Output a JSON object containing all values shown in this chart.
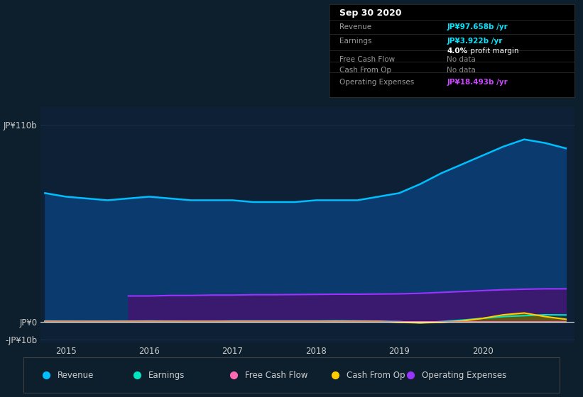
{
  "bg_color": "#0d1f2d",
  "chart_bg": "#0d2035",
  "grid_color": "#1e3a50",
  "title_date": "Sep 30 2020",
  "yticks": [
    "JP¥110b",
    "JP¥0",
    "-JP¥10b"
  ],
  "ytick_vals": [
    110,
    0,
    -10
  ],
  "xticks": [
    "2015",
    "2016",
    "2017",
    "2018",
    "2019",
    "2020"
  ],
  "xlim": [
    2014.7,
    2021.1
  ],
  "ylim": [
    -12,
    120
  ],
  "legend_items": [
    {
      "label": "Revenue",
      "color": "#00bfff"
    },
    {
      "label": "Earnings",
      "color": "#00e5c0"
    },
    {
      "label": "Free Cash Flow",
      "color": "#ff69b4"
    },
    {
      "label": "Cash From Op",
      "color": "#ffcc00"
    },
    {
      "label": "Operating Expenses",
      "color": "#9933ff"
    }
  ],
  "revenue": {
    "x": [
      2014.75,
      2015.0,
      2015.25,
      2015.5,
      2015.75,
      2016.0,
      2016.25,
      2016.5,
      2016.75,
      2017.0,
      2017.25,
      2017.5,
      2017.75,
      2018.0,
      2018.25,
      2018.5,
      2018.75,
      2019.0,
      2019.25,
      2019.5,
      2019.75,
      2020.0,
      2020.25,
      2020.5,
      2020.75,
      2021.0
    ],
    "y": [
      72,
      70,
      69,
      68,
      69,
      70,
      69,
      68,
      68,
      68,
      67,
      67,
      67,
      68,
      68,
      68,
      70,
      72,
      77,
      83,
      88,
      93,
      98,
      102,
      100,
      97
    ],
    "color": "#00bfff",
    "fill_color": "#0a3a6e"
  },
  "op_expenses": {
    "x": [
      2015.75,
      2016.0,
      2016.25,
      2016.5,
      2016.75,
      2017.0,
      2017.25,
      2017.5,
      2017.75,
      2018.0,
      2018.25,
      2018.5,
      2018.75,
      2019.0,
      2019.25,
      2019.5,
      2019.75,
      2020.0,
      2020.25,
      2020.5,
      2020.75,
      2021.0
    ],
    "y": [
      14.5,
      14.5,
      14.8,
      14.8,
      15.0,
      15.0,
      15.2,
      15.2,
      15.3,
      15.4,
      15.5,
      15.5,
      15.6,
      15.7,
      16.0,
      16.5,
      17.0,
      17.5,
      18.0,
      18.3,
      18.5,
      18.5
    ],
    "color": "#9933ff",
    "fill_color": "#3a1a6e"
  },
  "earnings": {
    "x": [
      2014.75,
      2015.0,
      2015.25,
      2015.5,
      2015.75,
      2016.0,
      2016.25,
      2016.5,
      2016.75,
      2017.0,
      2017.25,
      2017.5,
      2017.75,
      2018.0,
      2018.25,
      2018.5,
      2018.75,
      2019.0,
      2019.25,
      2019.5,
      2019.75,
      2020.0,
      2020.25,
      2020.5,
      2020.75,
      2021.0
    ],
    "y": [
      0.5,
      0.4,
      0.3,
      0.3,
      0.4,
      0.5,
      0.4,
      0.3,
      0.3,
      0.5,
      0.5,
      0.5,
      0.5,
      0.5,
      0.6,
      0.5,
      0.4,
      0.2,
      -0.5,
      0.2,
      1.0,
      2.0,
      3.0,
      3.5,
      4.0,
      3.9
    ],
    "color": "#00e5c0",
    "fill_color": "#004040"
  },
  "free_cash_flow": {
    "x": [
      2014.75,
      2015.0,
      2015.25,
      2015.5,
      2015.75,
      2016.0,
      2016.25,
      2016.5,
      2016.75,
      2017.0,
      2017.25,
      2017.5,
      2017.75,
      2018.0,
      2018.25,
      2018.5,
      2018.75,
      2019.0,
      2019.25,
      2019.5,
      2019.75,
      2020.0,
      2020.25,
      2020.5,
      2020.75,
      2021.0
    ],
    "y": [
      0.2,
      0.1,
      0.1,
      0.1,
      0.1,
      0.1,
      0.1,
      0.1,
      0.1,
      0.1,
      0.1,
      0.1,
      0.1,
      0.1,
      0.1,
      0.1,
      0.1,
      0.1,
      0.1,
      0.1,
      0.1,
      0.1,
      0.1,
      0.1,
      0.1,
      0.1
    ],
    "color": "#ff69b4"
  },
  "cash_from_op": {
    "x": [
      2014.75,
      2015.0,
      2015.25,
      2015.5,
      2015.75,
      2016.0,
      2016.25,
      2016.5,
      2016.75,
      2017.0,
      2017.25,
      2017.5,
      2017.75,
      2018.0,
      2018.25,
      2018.5,
      2018.75,
      2019.0,
      2019.25,
      2019.5,
      2019.75,
      2020.0,
      2020.25,
      2020.5,
      2020.75,
      2021.0
    ],
    "y": [
      0.3,
      0.3,
      0.3,
      0.3,
      0.3,
      0.3,
      0.3,
      0.3,
      0.3,
      0.3,
      0.3,
      0.3,
      0.3,
      0.3,
      0.3,
      0.3,
      0.3,
      -0.2,
      -0.5,
      -0.2,
      0.5,
      2.0,
      4.0,
      5.0,
      3.0,
      1.5
    ],
    "color": "#ffcc00"
  },
  "panel": {
    "title": "Sep 30 2020",
    "rows": [
      {
        "label": "Revenue",
        "value": "JP¥97.658b /yr",
        "value_color": "#00e5ff",
        "extra": null
      },
      {
        "label": "Earnings",
        "value": "JP¥3.922b /yr",
        "value_color": "#00e5ff",
        "extra": "4.0% profit margin"
      },
      {
        "label": "Free Cash Flow",
        "value": "No data",
        "value_color": "#888888",
        "extra": null
      },
      {
        "label": "Cash From Op",
        "value": "No data",
        "value_color": "#888888",
        "extra": null
      },
      {
        "label": "Operating Expenses",
        "value": "JP¥18.493b /yr",
        "value_color": "#cc44ff",
        "extra": null
      }
    ]
  }
}
